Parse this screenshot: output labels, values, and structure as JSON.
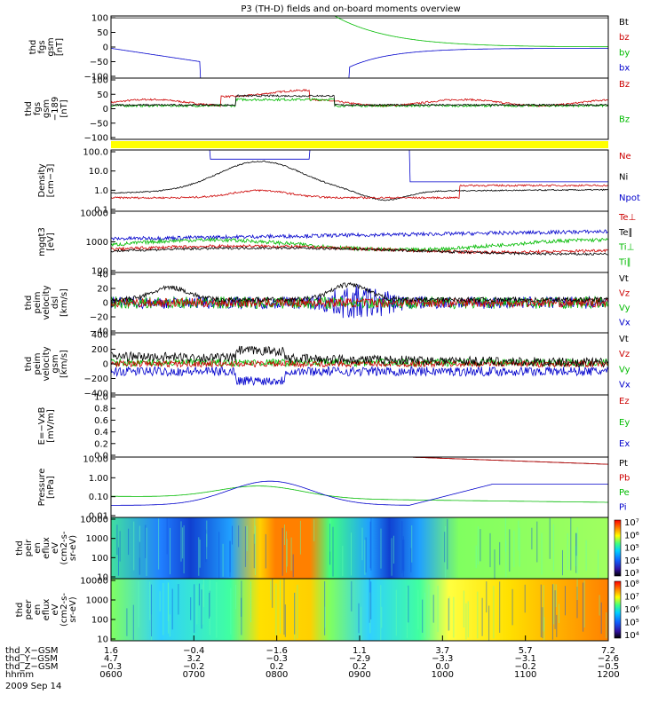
{
  "chart_data": {
    "type": "line",
    "title": "P3 (TH-D) fields and on-board moments overview",
    "date": "2009 Sep 14",
    "panels": [
      {
        "ylabel": [
          "thd",
          "fgs",
          "gsm",
          "[nT]"
        ],
        "yticks": [
          "100",
          "50",
          "0",
          "−50",
          "−100"
        ],
        "legend": [
          {
            "text": "Bt",
            "color": "#000000"
          },
          {
            "text": "bz",
            "color": "#cc0000"
          },
          {
            "text": "by",
            "color": "#00bb00"
          },
          {
            "text": "bx",
            "color": "#0000cc"
          }
        ]
      },
      {
        "ylabel": [
          "thd",
          "fgs",
          "gsm",
          "−189",
          "[nT]"
        ],
        "yticks": [
          "100",
          "50",
          "0",
          "−50",
          "−100"
        ],
        "legend": [
          {
            "text": "Bz",
            "color": "#cc0000"
          },
          {
            "text": "Bz",
            "color": "#00bb00"
          }
        ]
      },
      {
        "ylabel": [
          "Density",
          "[cm−3]"
        ],
        "yticks": [
          "100.0",
          "10.0",
          "1.0",
          "0.1"
        ],
        "legend": [
          {
            "text": "Ne",
            "color": "#cc0000"
          },
          {
            "text": "Ni",
            "color": "#000000"
          },
          {
            "text": "Npot",
            "color": "#0000cc"
          }
        ]
      },
      {
        "ylabel": [
          "mgqt3",
          "[eV]"
        ],
        "yticks": [
          "10000",
          "1000",
          "100"
        ],
        "legend": [
          {
            "text": "Te⊥",
            "color": "#cc0000"
          },
          {
            "text": "Te∥",
            "color": "#000000"
          },
          {
            "text": "Ti⊥",
            "color": "#00bb00"
          },
          {
            "text": "Ti∥",
            "color": "#00bb00"
          }
        ]
      },
      {
        "ylabel": [
          "thd",
          "peim",
          "velocity",
          "dsl",
          "[km/s]"
        ],
        "yticks": [
          "40",
          "20",
          "0",
          "−20",
          "−40"
        ],
        "legend": [
          {
            "text": "Vt",
            "color": "#000000"
          },
          {
            "text": "Vz",
            "color": "#cc0000"
          },
          {
            "text": "Vy",
            "color": "#00bb00"
          },
          {
            "text": "Vx",
            "color": "#0000cc"
          }
        ]
      },
      {
        "ylabel": [
          "thd",
          "peim",
          "velocity",
          "gsm",
          "[km/s]"
        ],
        "yticks": [
          "400",
          "200",
          "0",
          "−200",
          "−400"
        ],
        "legend": [
          {
            "text": "Vt",
            "color": "#000000"
          },
          {
            "text": "Vz",
            "color": "#cc0000"
          },
          {
            "text": "Vy",
            "color": "#00bb00"
          },
          {
            "text": "Vx",
            "color": "#0000cc"
          }
        ]
      },
      {
        "ylabel": [
          "E=−VxB",
          "[mV/m]"
        ],
        "yticks": [
          "1.0",
          "0.8",
          "0.6",
          "0.4",
          "0.2",
          "0.0"
        ],
        "legend": [
          {
            "text": "Ez",
            "color": "#cc0000"
          },
          {
            "text": "Ey",
            "color": "#00bb00"
          },
          {
            "text": "Ex",
            "color": "#0000cc"
          }
        ]
      },
      {
        "ylabel": [
          "Pressure",
          "[nPa]"
        ],
        "yticks": [
          "10.00",
          "1.00",
          "0.10",
          "0.01"
        ],
        "legend": [
          {
            "text": "Pt",
            "color": "#000000"
          },
          {
            "text": "Pb",
            "color": "#cc0000"
          },
          {
            "text": "Pe",
            "color": "#00bb00"
          },
          {
            "text": "Pi",
            "color": "#0000cc"
          }
        ]
      },
      {
        "ylabel": [
          "thd",
          "peir",
          "en",
          "eflux",
          "eV",
          "(cm2-s-",
          "sr-eV)"
        ],
        "yticks": [
          "10000",
          "1000",
          "100",
          "10"
        ],
        "colorbar": [
          "10⁷",
          "10⁶",
          "10⁵",
          "10⁴",
          "10³"
        ]
      },
      {
        "ylabel": [
          "thd",
          "peer",
          "en",
          "eflux",
          "eV",
          "(cm2-s-",
          "sr-eV)"
        ],
        "yticks": [
          "10000",
          "1000",
          "100",
          "10"
        ],
        "colorbar": [
          "10⁸",
          "10⁷",
          "10⁶",
          "10⁵",
          "10⁴"
        ]
      }
    ],
    "x_axis": {
      "rows": [
        {
          "label": "thd_X−GSM",
          "values": [
            "1.6",
            "−0.4",
            "−1.6",
            "1.1",
            "3.7",
            "5.7",
            "7.2"
          ]
        },
        {
          "label": "thd_Y−GSM",
          "values": [
            "4.7",
            "3.2",
            "−0.3",
            "−2.9",
            "−3.3",
            "−3.1",
            "−2.6"
          ]
        },
        {
          "label": "thd_Z−GSM",
          "values": [
            "−0.3",
            "−0.2",
            "0.2",
            "0.2",
            "0.0",
            "−0.2",
            "−0.5"
          ]
        },
        {
          "label": "hhmm",
          "values": [
            "0600",
            "0700",
            "0800",
            "0900",
            "1000",
            "1100",
            "1200"
          ]
        }
      ]
    }
  }
}
